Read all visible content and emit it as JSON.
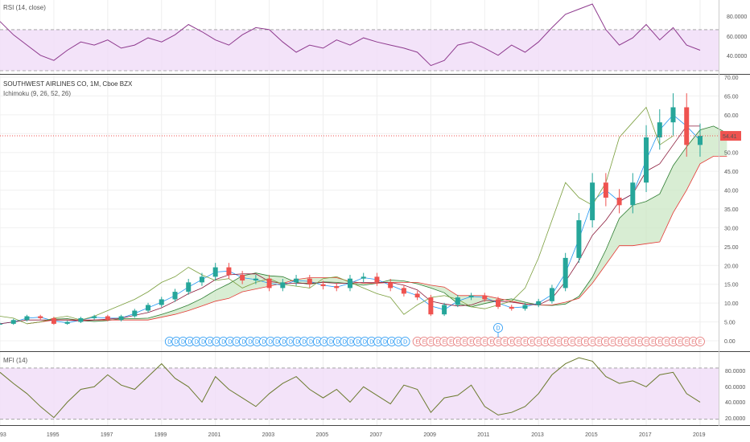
{
  "rsi": {
    "label": "RSI (14, close)",
    "ticks": [
      "80.0000",
      "60.0000",
      "40.0000"
    ]
  },
  "main": {
    "title": "SOUTHWEST AIRLINES CO, 1M, Cboe BZX",
    "indicator": "Ichimoku (9, 26, 52, 26)",
    "price_label": "54.41",
    "ticks": [
      "70.00",
      "65.00",
      "60.00",
      "55.00",
      "50.00",
      "45.00",
      "40.00",
      "35.00",
      "30.00",
      "25.00",
      "20.00",
      "15.00",
      "10.00",
      "5.00",
      "0.00"
    ]
  },
  "mfi": {
    "label": "MFI (14)",
    "ticks": [
      "80.0000",
      "60.0000",
      "40.0000",
      "20.0000"
    ]
  },
  "xaxis": {
    "ticks": [
      "93",
      "1995",
      "1997",
      "1999",
      "2001",
      "2003",
      "2005",
      "2007",
      "2009",
      "2011",
      "2013",
      "2015",
      "2017",
      "2019"
    ]
  },
  "events": {
    "dividend_letter": "D",
    "earnings_letter": "E"
  },
  "colors": {
    "up": "#26a69a",
    "down": "#ef5350",
    "rsi_line": "#8e3a8e",
    "band_fill": "#f0dcf7",
    "tenkan": "#2196f3",
    "kijun": "#8b1a3a",
    "chikou": "#7a9e3c",
    "cloud_fill": "#c8e6c0",
    "span_a": "#2e7d32",
    "span_b": "#e53935",
    "price_line": "#ef5350"
  },
  "chart_data": [
    {
      "type": "line",
      "name": "RSI",
      "x": [
        1993.0,
        1993.5,
        1994.0,
        1994.5,
        1995.0,
        1995.5,
        1996.0,
        1996.5,
        1997.0,
        1997.5,
        1998.0,
        1998.5,
        1999.0,
        1999.5,
        2000.0,
        2000.5,
        2001.0,
        2001.5,
        2002.0,
        2002.5,
        2003.0,
        2003.5,
        2004.0,
        2004.5,
        2005.0,
        2005.5,
        2006.0,
        2006.5,
        2007.0,
        2007.5,
        2008.0,
        2008.5,
        2009.0,
        2009.5,
        2010.0,
        2010.5,
        2011.0,
        2011.5,
        2012.0,
        2012.5,
        2013.0,
        2013.5,
        2014.0,
        2014.5,
        2015.0,
        2015.5,
        2016.0,
        2016.5,
        2017.0,
        2017.5,
        2018.0,
        2018.5,
        2019.0
      ],
      "y": [
        78,
        65,
        55,
        45,
        40,
        50,
        58,
        55,
        60,
        52,
        55,
        62,
        58,
        65,
        75,
        68,
        60,
        55,
        65,
        72,
        70,
        58,
        48,
        55,
        52,
        60,
        55,
        62,
        58,
        55,
        52,
        48,
        35,
        40,
        55,
        58,
        52,
        45,
        55,
        48,
        58,
        72,
        85,
        90,
        95,
        70,
        55,
        62,
        75,
        60,
        72,
        55,
        50
      ],
      "ylim": [
        30,
        95
      ],
      "reference_lines": [
        70,
        30
      ]
    },
    {
      "type": "candlestick",
      "name": "SOUTHWEST AIRLINES CO",
      "ylim": [
        0,
        70
      ],
      "last_price": 54.41,
      "x": [
        1993.0,
        1993.5,
        1994.0,
        1994.5,
        1995.0,
        1995.5,
        1996.0,
        1996.5,
        1997.0,
        1997.5,
        1998.0,
        1998.5,
        1999.0,
        1999.5,
        2000.0,
        2000.5,
        2001.0,
        2001.5,
        2002.0,
        2002.5,
        2003.0,
        2003.5,
        2004.0,
        2004.5,
        2005.0,
        2005.5,
        2006.0,
        2006.5,
        2007.0,
        2007.5,
        2008.0,
        2008.5,
        2009.0,
        2009.5,
        2010.0,
        2010.5,
        2011.0,
        2011.5,
        2012.0,
        2012.5,
        2013.0,
        2013.5,
        2014.0,
        2014.5,
        2015.0,
        2015.5,
        2016.0,
        2016.5,
        2017.0,
        2017.5,
        2018.0,
        2018.5,
        2019.0
      ],
      "close": [
        4.5,
        5.5,
        6.5,
        6.0,
        4.5,
        5.0,
        6.0,
        6.5,
        5.5,
        6.5,
        8.0,
        9.5,
        11.0,
        13.0,
        15.5,
        17.0,
        19.5,
        17.5,
        16.0,
        16.5,
        14.0,
        15.5,
        16.5,
        15.0,
        14.5,
        14.0,
        16.5,
        17.0,
        15.5,
        14.0,
        12.5,
        11.5,
        7.0,
        9.5,
        11.5,
        12.0,
        11.0,
        9.0,
        8.5,
        9.5,
        10.5,
        14.0,
        22.0,
        32.0,
        42.0,
        38.0,
        36.0,
        42.0,
        54.0,
        58.0,
        62.0,
        52.0,
        54.41
      ]
    },
    {
      "type": "line",
      "name": "MFI",
      "x": [
        1993.0,
        1993.5,
        1994.0,
        1994.5,
        1995.0,
        1995.5,
        1996.0,
        1996.5,
        1997.0,
        1997.5,
        1998.0,
        1998.5,
        1999.0,
        1999.5,
        2000.0,
        2000.5,
        2001.0,
        2001.5,
        2002.0,
        2002.5,
        2003.0,
        2003.5,
        2004.0,
        2004.5,
        2005.0,
        2005.5,
        2006.0,
        2006.5,
        2007.0,
        2007.5,
        2008.0,
        2008.5,
        2009.0,
        2009.5,
        2010.0,
        2010.5,
        2011.0,
        2011.5,
        2012.0,
        2012.5,
        2013.0,
        2013.5,
        2014.0,
        2014.5,
        2015.0,
        2015.5,
        2016.0,
        2016.5,
        2017.0,
        2017.5,
        2018.0,
        2018.5,
        2019.0
      ],
      "y": [
        75,
        62,
        50,
        35,
        22,
        40,
        55,
        58,
        72,
        60,
        55,
        70,
        85,
        68,
        58,
        40,
        70,
        55,
        45,
        35,
        50,
        62,
        70,
        55,
        45,
        55,
        40,
        58,
        48,
        38,
        60,
        55,
        28,
        45,
        48,
        60,
        35,
        25,
        28,
        35,
        50,
        72,
        85,
        92,
        88,
        70,
        62,
        65,
        58,
        72,
        75,
        50,
        40
      ],
      "ylim": [
        15,
        95
      ],
      "reference_lines": [
        80,
        20
      ]
    }
  ]
}
